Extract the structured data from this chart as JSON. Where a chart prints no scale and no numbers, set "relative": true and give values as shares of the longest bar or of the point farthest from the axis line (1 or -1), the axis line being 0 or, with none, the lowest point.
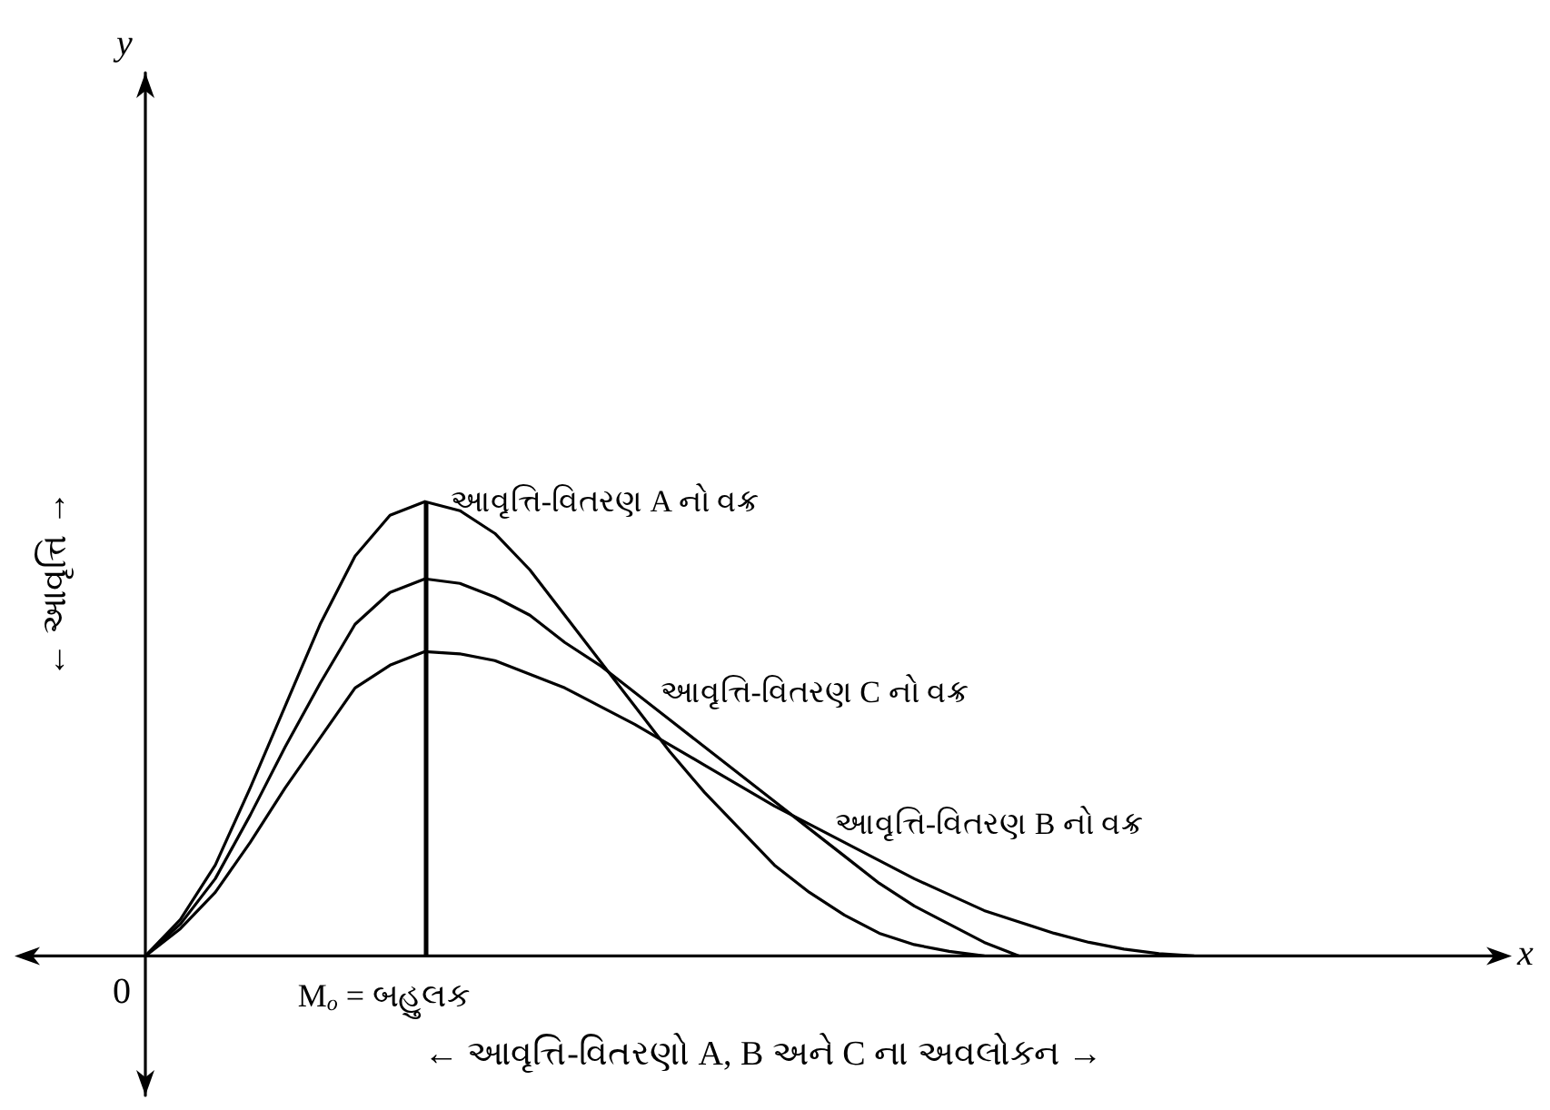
{
  "chart_data": {
    "type": "line",
    "relative": true,
    "xlabel": "← આવૃત્તિ-વિતરણો A, B અને C ના અવલોકન →",
    "ylabel": "← આવૃત્તિ →",
    "categories": [
      null,
      null,
      null,
      null,
      null,
      null,
      null,
      null,
      null,
      null,
      null,
      null,
      null,
      null,
      null,
      null,
      null,
      null,
      null,
      null,
      null,
      null,
      null,
      null,
      null,
      null,
      null,
      null,
      null,
      null,
      null
    ],
    "series": [
      {
        "name": "આવૃત્તિ-વિતરણ A નો વક્ર",
        "color": "#000000",
        "values": [
          0,
          0.08,
          0.2,
          0.37,
          0.55,
          0.73,
          0.88,
          0.97,
          1,
          0.98,
          0.93,
          0.85,
          0.75,
          0.65,
          0.55,
          0.45,
          0.36,
          0.28,
          0.2,
          0.14,
          0.09,
          0.05,
          0.025,
          0.01,
          0,
          null,
          null,
          null,
          null,
          null,
          null
        ]
      },
      {
        "name": "આવૃત્તિ-વિતરણ C નો વક્ર",
        "color": "#000000",
        "values": [
          0,
          0.07,
          0.17,
          0.31,
          0.46,
          0.6,
          0.73,
          0.8,
          0.83,
          0.82,
          0.79,
          0.75,
          0.69,
          0.64,
          0.58,
          0.52,
          0.46,
          0.4,
          0.34,
          0.28,
          0.22,
          0.16,
          0.11,
          0.07,
          0.03,
          0,
          null,
          null,
          null,
          null,
          null
        ]
      },
      {
        "name": "આવૃત્તિ-વિતરણ B નો વક્ર",
        "color": "#000000",
        "values": [
          0,
          0.06,
          0.14,
          0.25,
          0.37,
          0.48,
          0.59,
          0.64,
          0.67,
          0.665,
          0.65,
          0.62,
          0.59,
          0.55,
          0.51,
          0.465,
          0.42,
          0.375,
          0.33,
          0.29,
          0.25,
          0.21,
          0.17,
          0.135,
          0.1,
          0.075,
          0.05,
          0.03,
          0.015,
          0.005,
          0
        ]
      }
    ],
    "ref_lines": [
      {
        "axis": "x",
        "label": "M$_{o}$ = બહુલક",
        "color": "#000000"
      }
    ],
    "annotations": [
      "y",
      "x",
      "0"
    ],
    "grid": false,
    "legend": false,
    "marker": "none",
    "line_style": "solid"
  }
}
